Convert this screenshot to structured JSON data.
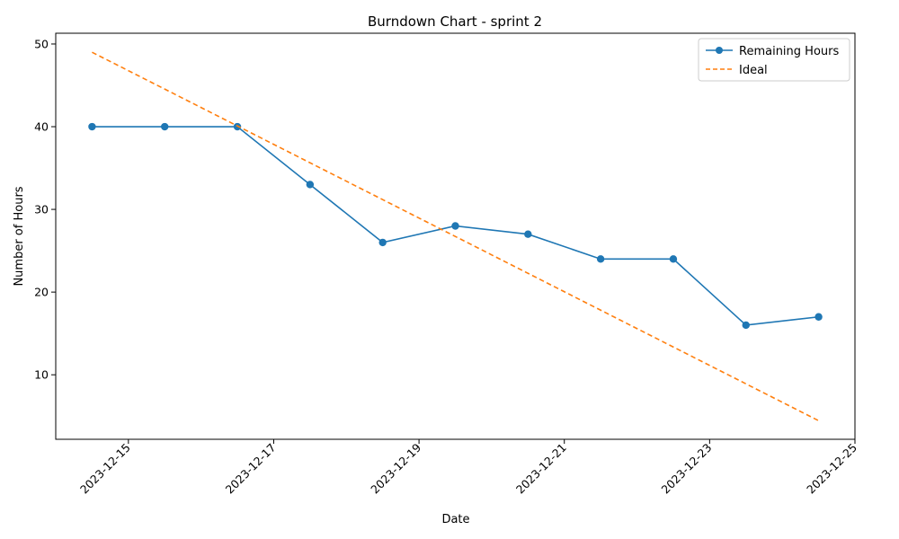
{
  "chart_data": {
    "type": "line",
    "title": "Burndown Chart - sprint 2",
    "xlabel": "Date",
    "ylabel": "Number of Hours",
    "x_tick_labels": [
      "2023-12-15",
      "2023-12-17",
      "2023-12-19",
      "2023-12-21",
      "2023-12-23",
      "2023-12-25"
    ],
    "y_tick_labels": [
      "10",
      "20",
      "30",
      "40",
      "50"
    ],
    "legend_position": "upper right",
    "grid": false,
    "series": [
      {
        "name": "Remaining Hours",
        "style": "solid-with-markers",
        "color": "#1f77b4",
        "points": [
          {
            "x": "2023-12-14T12:00",
            "y": 40
          },
          {
            "x": "2023-12-15T12:00",
            "y": 40
          },
          {
            "x": "2023-12-16T12:00",
            "y": 40
          },
          {
            "x": "2023-12-17T12:00",
            "y": 33
          },
          {
            "x": "2023-12-18T12:00",
            "y": 26
          },
          {
            "x": "2023-12-19T12:00",
            "y": 28
          },
          {
            "x": "2023-12-20T12:00",
            "y": 27
          },
          {
            "x": "2023-12-21T12:00",
            "y": 24
          },
          {
            "x": "2023-12-22T12:00",
            "y": 24
          },
          {
            "x": "2023-12-23T12:00",
            "y": 16
          },
          {
            "x": "2023-12-24T12:00",
            "y": 17
          }
        ]
      },
      {
        "name": "Ideal",
        "style": "dashed",
        "color": "#ff7f0e",
        "points": [
          {
            "x": "2023-12-14T12:00",
            "y": 49
          },
          {
            "x": "2023-12-24T12:00",
            "y": 4.45
          }
        ]
      }
    ],
    "x_range": [
      "2023-12-14T00:00",
      "2023-12-25T00:00"
    ],
    "y_range": [
      2.2,
      51.3
    ]
  }
}
